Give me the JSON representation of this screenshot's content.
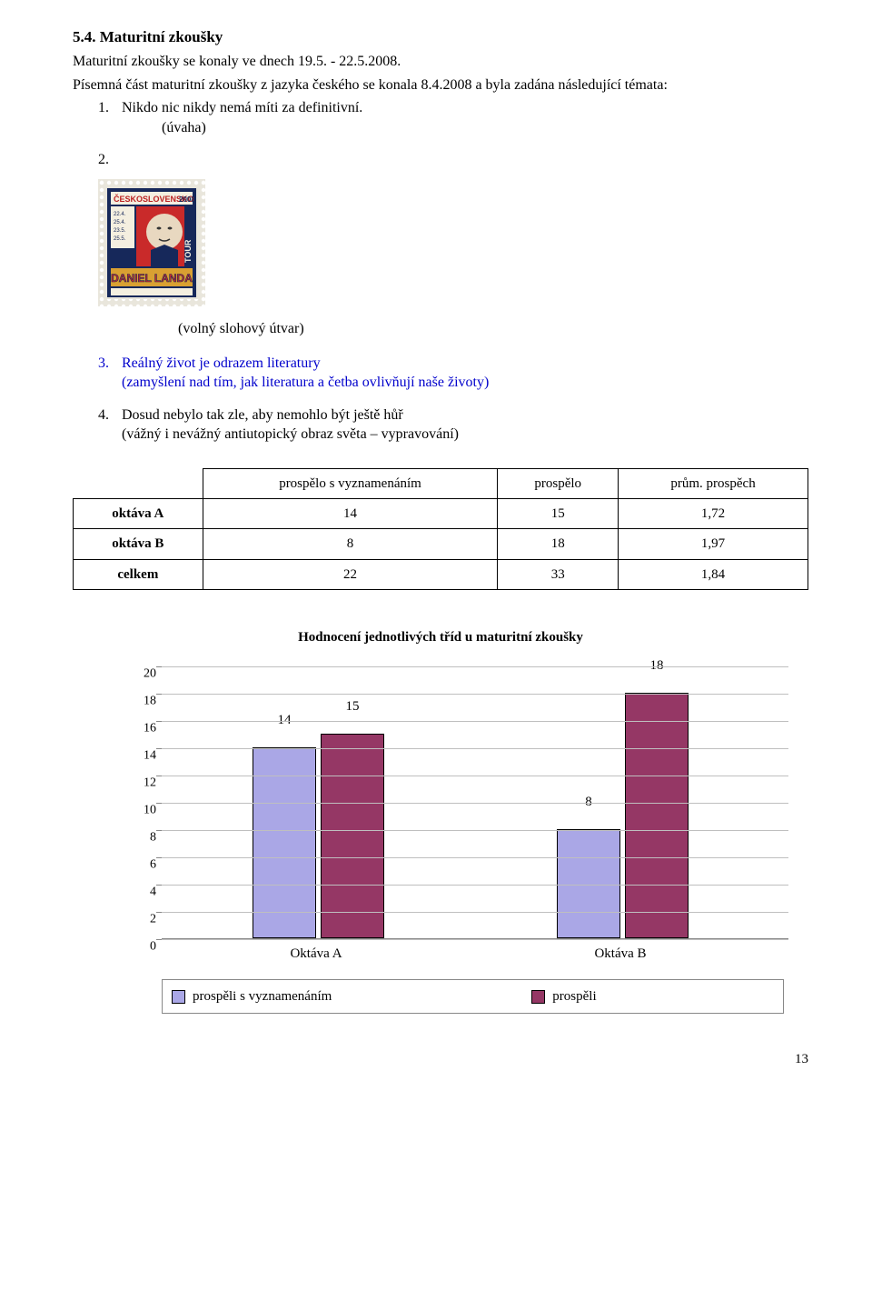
{
  "section": {
    "number": "5.4.",
    "title": "Maturitní zkoušky",
    "line1": "Maturitní zkoušky se konaly ve dnech 19.5. - 22.5.2008.",
    "line2": "Písemná část maturitní zkoušky z jazyka českého se konala 8.4.2008 a byla zadána  následující témata:"
  },
  "items": {
    "n1": "1.",
    "t1": "Nikdo nic nikdy nemá míti za definitivní.",
    "t1s": "(úvaha)",
    "n2": "2.",
    "volny": "(volný slohový útvar)",
    "n3": "3.",
    "t3a": "Reálný život je odrazem literatury",
    "t3b": "(zamyšlení nad tím, jak literatura a četba ovlivňují naše životy)",
    "n4": "4.",
    "t4a": "Dosud nebylo tak zle, aby nemohlo být ještě hůř",
    "t4b": "(vážný i nevážný antiutopický obraz světa – vypravování)"
  },
  "table": {
    "h1": "prospělo s vyznamenáním",
    "h2": "prospělo",
    "h3": "prům. prospěch",
    "r1": {
      "label": "oktáva A",
      "c1": "14",
      "c2": "15",
      "c3": "1,72"
    },
    "r2": {
      "label": "oktáva B",
      "c1": "8",
      "c2": "18",
      "c3": "1,97"
    },
    "r3": {
      "label": "celkem",
      "c1": "22",
      "c2": "33",
      "c3": "1,84"
    }
  },
  "chart": {
    "title": "Hodnocení jednotlivých tříd u maturitní zkoušky",
    "ymax": 20,
    "ticks": [
      "0",
      "2",
      "4",
      "6",
      "8",
      "10",
      "12",
      "14",
      "16",
      "18",
      "20"
    ],
    "colors": {
      "a": "#aaa7e6",
      "b": "#953765",
      "grid": "#bfbfbf"
    },
    "g1": {
      "name": "Oktáva A",
      "a": 14,
      "b": 15,
      "la": "14",
      "lb": "15"
    },
    "g2": {
      "name": "Oktáva B",
      "a": 8,
      "b": 18,
      "la": "8",
      "lb": "18"
    },
    "legend": {
      "a": "prospěli s vyznamenáním",
      "b": "prospěli"
    }
  },
  "page": "13"
}
